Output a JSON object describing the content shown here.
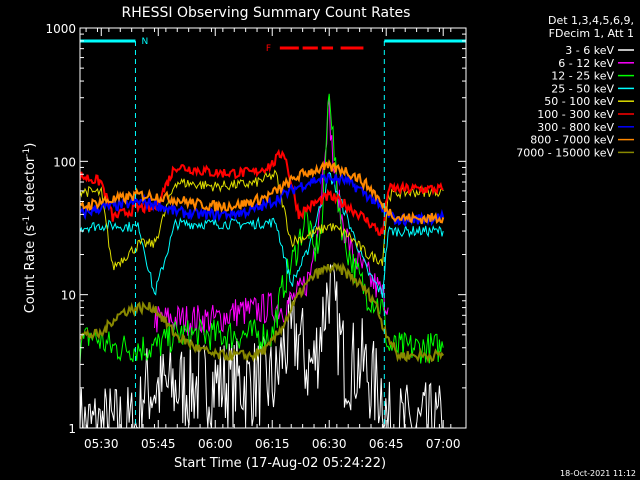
{
  "chart_data": {
    "type": "line",
    "title": "RHESSI Observing Summary Count Rates",
    "xlabel": "Start Time (17-Aug-02 05:24:22)",
    "ylabel_prefix": "Count Rate (s",
    "ylabel_sup": "-1",
    "ylabel_suffix": " detector",
    "ylabel_sup2": "-1",
    "ylabel_close": ")",
    "x_ticks": [
      "05:30",
      "05:45",
      "06:00",
      "06:15",
      "06:30",
      "06:45",
      "07:00"
    ],
    "x_tick_minutes": [
      30,
      45,
      60,
      75,
      90,
      105,
      120
    ],
    "xlim_minutes": [
      24.4,
      126
    ],
    "y_scale": "log",
    "ylim": [
      1,
      1000
    ],
    "y_ticks": [
      "1",
      "10",
      "100",
      "1000"
    ],
    "y_tick_values": [
      1,
      10,
      100,
      1000
    ],
    "legend": {
      "header1": "Det 1,3,4,5,6,9,",
      "header2": "FDecim 1, Att 1",
      "placement": "right"
    },
    "series": [
      {
        "name": "3 - 6 keV",
        "color": "#ffffff",
        "x": [
          24.4,
          30,
          33,
          40,
          41,
          44,
          49.5,
          60,
          70,
          76,
          78,
          82,
          84,
          86,
          88,
          90,
          92,
          94,
          96,
          99,
          102,
          104,
          105.5,
          120
        ],
        "y": [
          1,
          1,
          1,
          1,
          2,
          2,
          2,
          2.2,
          2.2,
          2.2,
          4,
          5,
          3,
          3,
          6,
          12,
          6,
          3,
          3,
          3,
          2,
          2,
          1,
          1
        ]
      },
      {
        "name": "6 - 12 keV",
        "color": "#ff00ff",
        "x": [
          44,
          49.5,
          60,
          66,
          70,
          74,
          78,
          82,
          85,
          88,
          89,
          90,
          91,
          93,
          96,
          100,
          104,
          105.5
        ],
        "y": [
          6.5,
          6.5,
          6.5,
          7.5,
          7.5,
          8,
          8,
          10,
          14,
          60,
          150,
          250,
          100,
          40,
          20,
          14,
          10,
          8
        ]
      },
      {
        "name": "12 - 25 keV",
        "color": "#00ff00",
        "x": [
          24.4,
          27,
          33,
          40,
          44,
          49.5,
          60,
          70,
          75,
          78,
          81,
          84,
          86,
          88,
          89,
          90,
          91,
          92,
          94,
          97,
          100,
          104,
          105.5,
          120
        ],
        "y": [
          4,
          5,
          4,
          4,
          4,
          5,
          5,
          5,
          5,
          12,
          20,
          40,
          20,
          30,
          100,
          400,
          150,
          60,
          25,
          15,
          10,
          8,
          4,
          4
        ]
      },
      {
        "name": "25 - 50 keV",
        "color": "#00ffff",
        "x": [
          24.4,
          30,
          33,
          40,
          44,
          49.5,
          60,
          70,
          76,
          80,
          84,
          88,
          90,
          92,
          96,
          100,
          104,
          105.5,
          120
        ],
        "y": [
          32,
          33,
          33,
          32,
          10,
          34,
          34,
          34,
          35,
          12,
          20,
          50,
          80,
          60,
          30,
          15,
          10,
          30,
          30
        ]
      },
      {
        "name": "50 - 100 keV",
        "color": "#dddd00",
        "x": [
          24.4,
          30,
          33,
          40,
          44,
          49.5,
          60,
          70,
          76,
          80,
          85,
          90,
          95,
          100,
          104,
          105.5,
          108,
          120
        ],
        "y": [
          60,
          58,
          16,
          24,
          24,
          70,
          65,
          68,
          80,
          25,
          28,
          33,
          28,
          20,
          18,
          55,
          58,
          60
        ]
      },
      {
        "name": "100 - 300 keV",
        "color": "#ff0000",
        "x": [
          24.4,
          30,
          33,
          40,
          44,
          49.5,
          60,
          70,
          75,
          78,
          82,
          86,
          90,
          94,
          98,
          102,
          104,
          105.5,
          108,
          120
        ],
        "y": [
          78,
          70,
          38,
          45,
          44,
          92,
          82,
          82,
          95,
          120,
          40,
          48,
          55,
          48,
          40,
          32,
          28,
          62,
          62,
          62
        ]
      },
      {
        "name": "300 - 800 keV",
        "color": "#0000ff",
        "x": [
          24.4,
          30,
          36,
          40,
          44,
          49.5,
          55,
          60,
          66,
          70,
          74,
          78,
          82,
          86,
          90,
          94,
          98,
          102,
          104,
          108,
          114,
          120
        ],
        "y": [
          40,
          45,
          47,
          50,
          48,
          42,
          40,
          40,
          41,
          43,
          48,
          56,
          65,
          72,
          75,
          72,
          62,
          50,
          42,
          36,
          37,
          38
        ]
      },
      {
        "name": "800 - 7000 keV",
        "color": "#ff8800",
        "x": [
          24.4,
          30,
          36,
          40,
          44,
          49.5,
          55,
          60,
          66,
          70,
          74,
          78,
          82,
          86,
          90,
          94,
          98,
          102,
          104,
          108,
          114,
          120
        ],
        "y": [
          45,
          50,
          53,
          56,
          55,
          52,
          48,
          46,
          47,
          50,
          55,
          65,
          78,
          86,
          90,
          86,
          74,
          58,
          46,
          38,
          37,
          38
        ]
      },
      {
        "name": "7000 - 15000 keV",
        "color": "#888800",
        "x": [
          24.4,
          30,
          33,
          36,
          40,
          44,
          49.5,
          55,
          60,
          66,
          70,
          74,
          78,
          82,
          86,
          90,
          94,
          98,
          102,
          104,
          108,
          114,
          120
        ],
        "y": [
          5,
          5,
          6.5,
          7.5,
          8,
          8,
          5,
          4,
          3.5,
          3.5,
          3.5,
          4,
          6,
          10,
          14,
          16,
          15,
          12,
          9,
          6,
          3.5,
          3.5,
          3.5
        ]
      }
    ],
    "annotations": {
      "night_label": "N",
      "flare_label": "F",
      "night_intervals_minutes": [
        [
          24.4,
          39
        ],
        [
          104.5,
          126
        ]
      ],
      "flare_intervals_minutes": [
        [
          77,
          82
        ],
        [
          83,
          87
        ],
        [
          88,
          91
        ],
        [
          93,
          99
        ]
      ],
      "night_color": "#00ffff",
      "flare_color": "#ff0000"
    },
    "grid": false
  },
  "footer": {
    "date_stamp": "18-Oct-2021 11:12"
  }
}
